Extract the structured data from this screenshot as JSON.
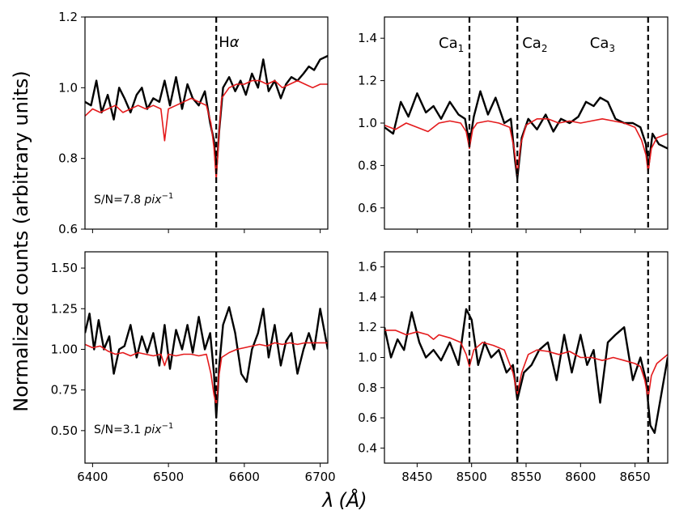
{
  "chart_data": {
    "type": "line",
    "ylabel": "Normalized counts (arbitrary units)",
    "xlabel_symbol": "λ",
    "xlabel_unit": "(Å)",
    "colors": {
      "observed": "#000000",
      "model": "#e41a1c",
      "marker": "#000000"
    },
    "panels": [
      {
        "id": "halpha-high",
        "xlim": [
          6390,
          6710
        ],
        "ylim": [
          0.6,
          1.2
        ],
        "xticks": [
          6400,
          6500,
          6600,
          6700
        ],
        "yticks": [
          0.6,
          0.8,
          1.0,
          1.2
        ],
        "ytick_labels": [
          "0.6",
          "0.8",
          "1.0",
          "1.2"
        ],
        "show_xtick_labels": false,
        "snr_text": "S/N=7.8",
        "snr_unit": "pix",
        "snr_exp": "−1",
        "lines": [
          {
            "x": 6563,
            "label": "H",
            "label_sub": "",
            "label_greek": "α"
          }
        ],
        "series": [
          {
            "name": "observed",
            "x": [
              6390,
              6398,
              6405,
              6412,
              6420,
              6428,
              6435,
              6442,
              6450,
              6458,
              6465,
              6472,
              6480,
              6488,
              6495,
              6502,
              6510,
              6518,
              6525,
              6532,
              6540,
              6548,
              6555,
              6560,
              6563,
              6567,
              6572,
              6580,
              6588,
              6595,
              6602,
              6610,
              6618,
              6625,
              6632,
              6640,
              6648,
              6655,
              6662,
              6670,
              6678,
              6685,
              6692,
              6700,
              6710
            ],
            "y": [
              0.96,
              0.95,
              1.02,
              0.93,
              0.98,
              0.91,
              1.0,
              0.97,
              0.93,
              0.98,
              1.0,
              0.94,
              0.97,
              0.96,
              1.02,
              0.95,
              1.03,
              0.94,
              1.01,
              0.97,
              0.95,
              0.99,
              0.9,
              0.85,
              0.76,
              0.88,
              1.0,
              1.03,
              0.99,
              1.02,
              0.98,
              1.04,
              1.0,
              1.08,
              0.99,
              1.02,
              0.97,
              1.01,
              1.03,
              1.02,
              1.04,
              1.06,
              1.05,
              1.08,
              1.09
            ]
          },
          {
            "name": "model",
            "x": [
              6390,
              6400,
              6410,
              6420,
              6430,
              6440,
              6450,
              6460,
              6470,
              6480,
              6490,
              6495,
              6500,
              6510,
              6520,
              6530,
              6540,
              6550,
              6556,
              6560,
              6563,
              6566,
              6570,
              6580,
              6590,
              6600,
              6610,
              6620,
              6630,
              6640,
              6650,
              6660,
              6670,
              6680,
              6690,
              6700,
              6710
            ],
            "y": [
              0.92,
              0.94,
              0.93,
              0.94,
              0.95,
              0.93,
              0.94,
              0.95,
              0.94,
              0.95,
              0.94,
              0.85,
              0.94,
              0.95,
              0.96,
              0.97,
              0.96,
              0.95,
              0.9,
              0.83,
              0.74,
              0.85,
              0.97,
              1.0,
              1.01,
              1.01,
              1.02,
              1.02,
              1.01,
              1.02,
              1.0,
              1.01,
              1.02,
              1.01,
              1.0,
              1.01,
              1.01
            ]
          }
        ]
      },
      {
        "id": "cat-high",
        "xlim": [
          8420,
          8680
        ],
        "ylim": [
          0.5,
          1.5
        ],
        "xticks": [
          8450,
          8500,
          8550,
          8600,
          8650
        ],
        "yticks": [
          0.6,
          0.8,
          1.0,
          1.2,
          1.4
        ],
        "ytick_labels": [
          "0.6",
          "0.8",
          "1.0",
          "1.2",
          "1.4"
        ],
        "show_xtick_labels": false,
        "lines": [
          {
            "x": 8498,
            "label": "Ca",
            "label_sub": "1",
            "label_greek": ""
          },
          {
            "x": 8542,
            "label": "Ca",
            "label_sub": "2",
            "label_greek": ""
          },
          {
            "x": 8662,
            "label": "Ca",
            "label_sub": "3",
            "label_greek": ""
          }
        ],
        "series": [
          {
            "name": "observed",
            "x": [
              8420,
              8428,
              8435,
              8442,
              8450,
              8458,
              8465,
              8472,
              8480,
              8488,
              8494,
              8498,
              8502,
              8508,
              8515,
              8522,
              8530,
              8536,
              8540,
              8542,
              8546,
              8552,
              8560,
              8568,
              8575,
              8582,
              8590,
              8598,
              8605,
              8612,
              8618,
              8625,
              8632,
              8640,
              8648,
              8655,
              8660,
              8662,
              8666,
              8672,
              8680
            ],
            "y": [
              0.98,
              0.95,
              1.1,
              1.03,
              1.14,
              1.05,
              1.08,
              1.02,
              1.1,
              1.04,
              1.02,
              0.9,
              1.03,
              1.15,
              1.04,
              1.12,
              1.0,
              1.02,
              0.82,
              0.74,
              0.93,
              1.02,
              0.97,
              1.04,
              0.96,
              1.02,
              1.0,
              1.03,
              1.1,
              1.08,
              1.12,
              1.1,
              1.02,
              1.0,
              1.0,
              0.98,
              0.9,
              0.78,
              0.95,
              0.9,
              0.88
            ]
          },
          {
            "name": "model",
            "x": [
              8420,
              8430,
              8440,
              8450,
              8460,
              8470,
              8480,
              8490,
              8495,
              8498,
              8501,
              8505,
              8515,
              8525,
              8535,
              8539,
              8542,
              8545,
              8550,
              8560,
              8570,
              8580,
              8590,
              8600,
              8610,
              8620,
              8630,
              8640,
              8650,
              8656,
              8660,
              8662,
              8665,
              8670,
              8680
            ],
            "y": [
              0.99,
              0.97,
              1.0,
              0.98,
              0.96,
              1.0,
              1.01,
              1.0,
              0.96,
              0.88,
              0.97,
              1.0,
              1.01,
              1.0,
              0.98,
              0.88,
              0.76,
              0.9,
              0.99,
              1.02,
              1.02,
              1.0,
              1.01,
              1.0,
              1.01,
              1.02,
              1.01,
              1.0,
              0.98,
              0.92,
              0.85,
              0.77,
              0.88,
              0.93,
              0.95
            ]
          }
        ]
      },
      {
        "id": "halpha-low",
        "xlim": [
          6390,
          6710
        ],
        "ylim": [
          0.3,
          1.6
        ],
        "xticks": [
          6400,
          6500,
          6600,
          6700
        ],
        "yticks": [
          0.5,
          0.75,
          1.0,
          1.25,
          1.5
        ],
        "ytick_labels": [
          "0.50",
          "0.75",
          "1.00",
          "1.25",
          "1.50"
        ],
        "show_xtick_labels": true,
        "snr_text": "S/N=3.1",
        "snr_unit": "pix",
        "snr_exp": "−1",
        "lines": [
          {
            "x": 6563,
            "label": "",
            "label_sub": "",
            "label_greek": ""
          }
        ],
        "series": [
          {
            "name": "observed",
            "x": [
              6390,
              6396,
              6402,
              6408,
              6415,
              6422,
              6428,
              6435,
              6442,
              6450,
              6458,
              6465,
              6472,
              6480,
              6488,
              6495,
              6502,
              6510,
              6518,
              6525,
              6532,
              6540,
              6548,
              6555,
              6560,
              6563,
              6567,
              6572,
              6580,
              6588,
              6596,
              6603,
              6610,
              6618,
              6625,
              6632,
              6640,
              6648,
              6655,
              6662,
              6670,
              6678,
              6685,
              6692,
              6700,
              6710
            ],
            "y": [
              1.1,
              1.22,
              1.0,
              1.18,
              1.0,
              1.08,
              0.85,
              1.0,
              1.02,
              1.15,
              0.95,
              1.08,
              0.98,
              1.1,
              0.9,
              1.15,
              0.88,
              1.12,
              1.0,
              1.15,
              0.98,
              1.2,
              1.0,
              1.1,
              0.85,
              0.58,
              0.9,
              1.15,
              1.26,
              1.1,
              0.85,
              0.8,
              1.0,
              1.1,
              1.25,
              0.95,
              1.15,
              0.9,
              1.05,
              1.1,
              0.85,
              1.0,
              1.1,
              1.0,
              1.25,
              1.0
            ]
          },
          {
            "name": "model",
            "x": [
              6390,
              6400,
              6410,
              6420,
              6430,
              6440,
              6450,
              6460,
              6470,
              6480,
              6490,
              6495,
              6500,
              6510,
              6520,
              6530,
              6540,
              6550,
              6556,
              6560,
              6563,
              6566,
              6570,
              6580,
              6590,
              6600,
              6610,
              6620,
              6630,
              6640,
              6650,
              6660,
              6670,
              6680,
              6690,
              6700,
              6710
            ],
            "y": [
              1.03,
              1.01,
              1.02,
              0.99,
              0.97,
              0.98,
              0.96,
              0.98,
              0.97,
              0.96,
              0.97,
              0.9,
              0.97,
              0.96,
              0.97,
              0.97,
              0.96,
              0.97,
              0.85,
              0.72,
              0.66,
              0.82,
              0.95,
              0.98,
              1.0,
              1.01,
              1.02,
              1.03,
              1.02,
              1.04,
              1.03,
              1.04,
              1.03,
              1.04,
              1.04,
              1.04,
              1.04
            ]
          }
        ]
      },
      {
        "id": "cat-low",
        "xlim": [
          8420,
          8680
        ],
        "ylim": [
          0.3,
          1.7
        ],
        "xticks": [
          8450,
          8500,
          8550,
          8600,
          8650
        ],
        "yticks": [
          0.4,
          0.6,
          0.8,
          1.0,
          1.2,
          1.4,
          1.6
        ],
        "ytick_labels": [
          "0.4",
          "0.6",
          "0.8",
          "1.0",
          "1.2",
          "1.4",
          "1.6"
        ],
        "show_xtick_labels": true,
        "lines": [
          {
            "x": 8498,
            "label": "",
            "label_sub": "",
            "label_greek": ""
          },
          {
            "x": 8542,
            "label": "",
            "label_sub": "",
            "label_greek": ""
          },
          {
            "x": 8662,
            "label": "",
            "label_sub": "",
            "label_greek": ""
          }
        ],
        "series": [
          {
            "name": "observed",
            "x": [
              8420,
              8426,
              8432,
              8438,
              8445,
              8452,
              8458,
              8465,
              8472,
              8480,
              8488,
              8495,
              8500,
              8506,
              8512,
              8518,
              8525,
              8532,
              8538,
              8542,
              8548,
              8555,
              8562,
              8570,
              8578,
              8585,
              8592,
              8600,
              8606,
              8612,
              8618,
              8625,
              8632,
              8640,
              8648,
              8655,
              8660,
              8664,
              8668,
              8674,
              8680
            ],
            "y": [
              1.2,
              1.0,
              1.12,
              1.05,
              1.3,
              1.1,
              1.0,
              1.05,
              0.98,
              1.1,
              0.95,
              1.32,
              1.25,
              0.95,
              1.1,
              1.0,
              1.05,
              0.9,
              0.95,
              0.72,
              0.9,
              0.95,
              1.05,
              1.1,
              0.85,
              1.15,
              0.9,
              1.15,
              0.95,
              1.05,
              0.7,
              1.1,
              1.15,
              1.2,
              0.85,
              1.0,
              0.85,
              0.55,
              0.5,
              0.75,
              1.0
            ]
          },
          {
            "name": "model",
            "x": [
              8420,
              8430,
              8440,
              8450,
              8460,
              8465,
              8470,
              8480,
              8490,
              8495,
              8498,
              8502,
              8510,
              8520,
              8530,
              8538,
              8542,
              8546,
              8552,
              8560,
              8570,
              8580,
              8590,
              8600,
              8610,
              8620,
              8630,
              8640,
              8650,
              8655,
              8659,
              8662,
              8665,
              8670,
              8680
            ],
            "y": [
              1.18,
              1.18,
              1.15,
              1.17,
              1.15,
              1.12,
              1.15,
              1.13,
              1.1,
              1.02,
              0.94,
              1.05,
              1.1,
              1.08,
              1.05,
              0.9,
              0.76,
              0.9,
              1.02,
              1.05,
              1.04,
              1.02,
              1.04,
              1.0,
              1.0,
              0.98,
              1.0,
              0.98,
              0.96,
              0.94,
              0.85,
              0.73,
              0.88,
              0.96,
              1.02
            ]
          }
        ]
      }
    ]
  }
}
